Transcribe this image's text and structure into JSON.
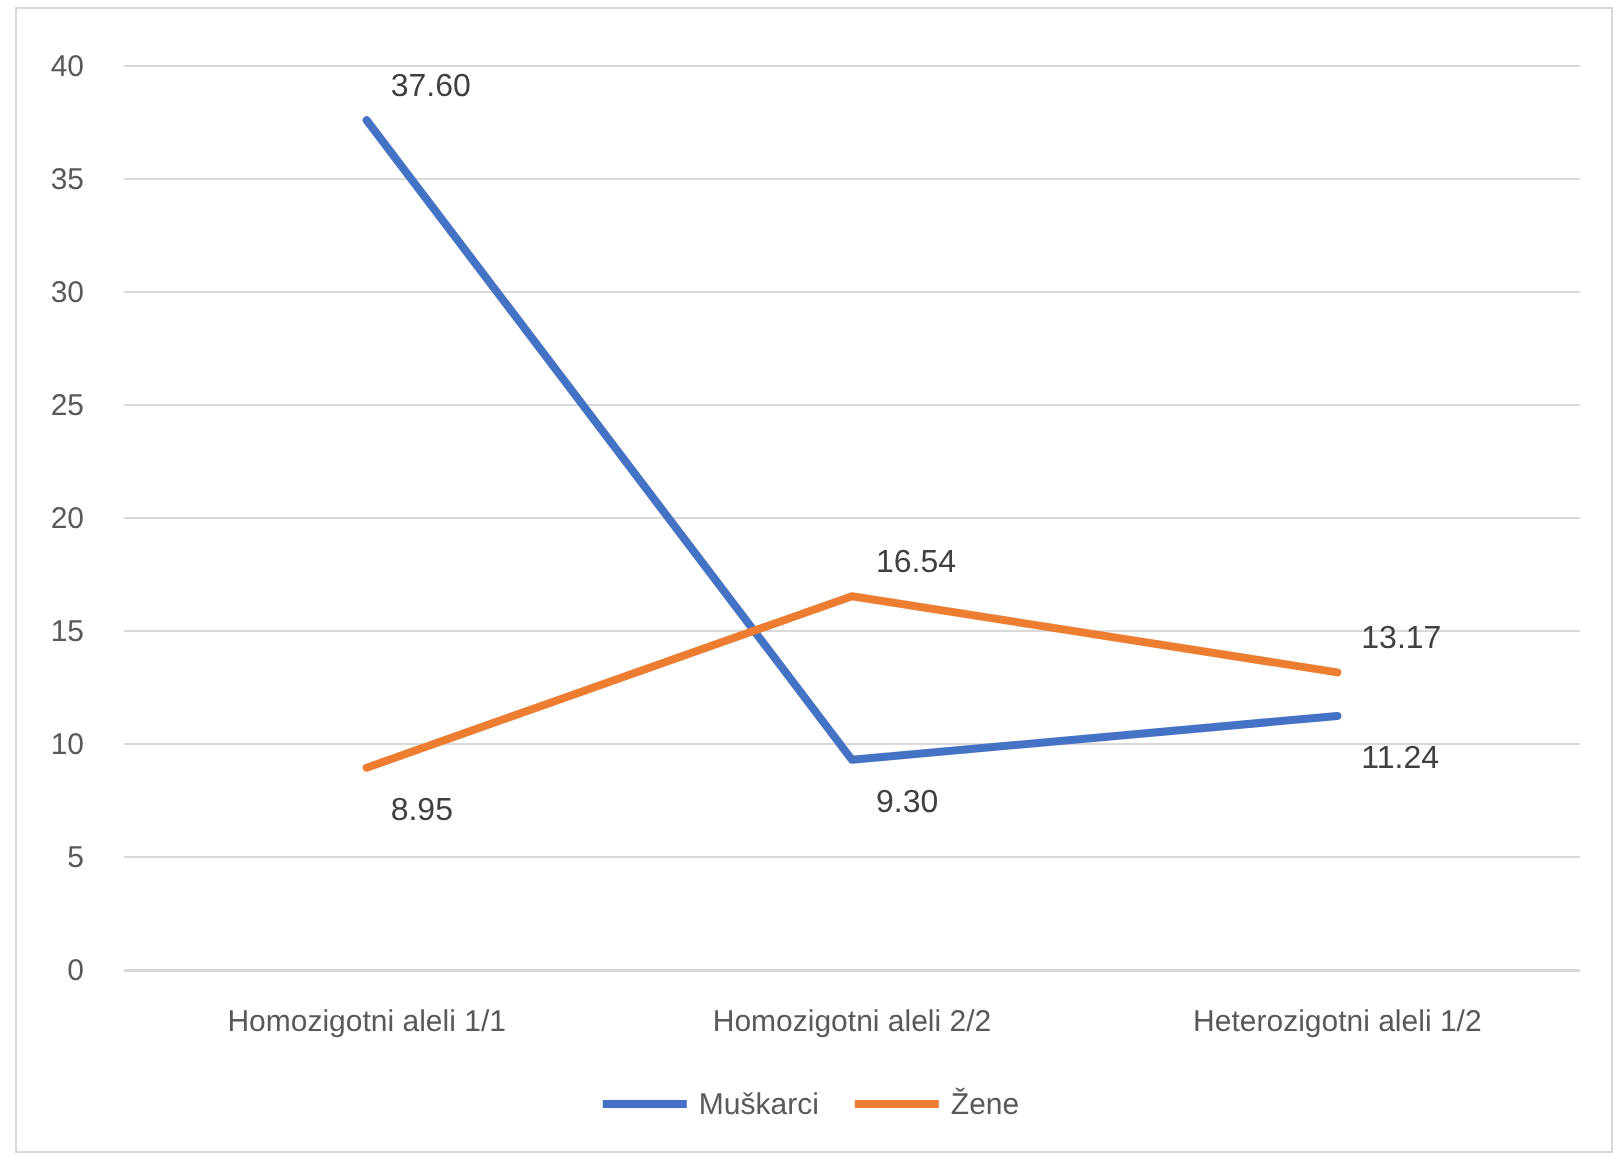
{
  "chart_data": {
    "type": "line",
    "categories": [
      "Homozigotni aleli 1/1",
      "Homozigotni aleli 2/2",
      "Heterozigotni aleli 1/2"
    ],
    "series": [
      {
        "name": "Muškarci",
        "color": "#4472c4",
        "values": [
          37.6,
          9.3,
          11.24
        ],
        "value_labels": [
          "37.60",
          "9.30",
          "11.24"
        ]
      },
      {
        "name": "Žene",
        "color": "#ed7d31",
        "values": [
          8.95,
          16.54,
          13.17
        ],
        "value_labels": [
          "8.95",
          "16.54",
          "13.17"
        ]
      }
    ],
    "ylim": [
      0,
      40
    ],
    "yticks": [
      0,
      5,
      10,
      15,
      20,
      25,
      30,
      35,
      40
    ],
    "grid": "y",
    "legend": "bottom",
    "marker": "none",
    "line_style": "solid"
  }
}
